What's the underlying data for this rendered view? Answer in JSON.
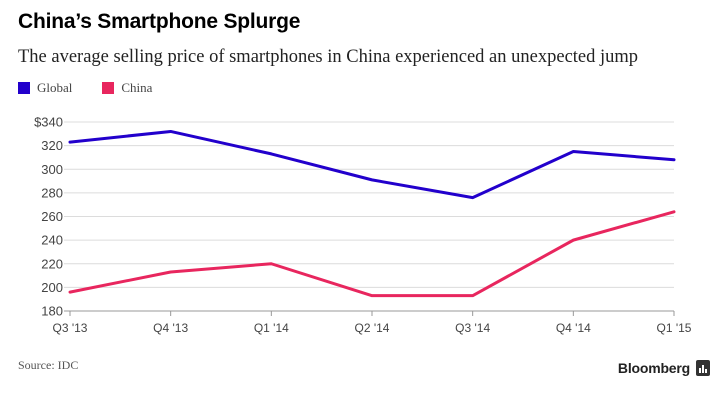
{
  "header": {
    "title": "China’s Smartphone Splurge",
    "subtitle": "The average selling price of smartphones in China experienced an unexpected jump"
  },
  "footer": {
    "source": "Source: IDC",
    "brand": "Bloomberg"
  },
  "chart_data": {
    "type": "line",
    "title": "China’s Smartphone Splurge",
    "subtitle": "The average selling price of smartphones in China experienced an unexpected jump",
    "xlabel": "",
    "ylabel": "",
    "categories": [
      "Q3 '13",
      "Q4 '13",
      "Q1 '14",
      "Q2 '14",
      "Q3 '14",
      "Q4 '14",
      "Q1 '15"
    ],
    "ylim": [
      180,
      340
    ],
    "yticks": [
      180,
      200,
      220,
      240,
      260,
      280,
      300,
      320,
      340
    ],
    "ytick_labels": [
      "180",
      "200",
      "220",
      "240",
      "260",
      "280",
      "300",
      "320",
      "$340"
    ],
    "grid": true,
    "legend_position": "top-left",
    "series": [
      {
        "name": "Global",
        "color": "#2200cc",
        "values": [
          323,
          332,
          313,
          291,
          276,
          315,
          308
        ]
      },
      {
        "name": "China",
        "color": "#e8265e",
        "values": [
          196,
          213,
          220,
          193,
          193,
          240,
          264
        ]
      }
    ]
  }
}
